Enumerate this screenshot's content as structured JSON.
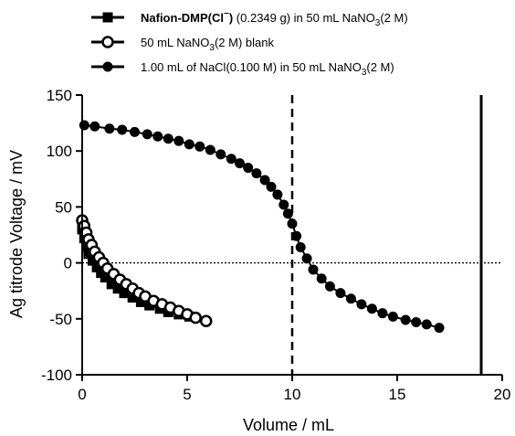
{
  "chart_data": {
    "type": "scatter",
    "xlabel": "Volume / mL",
    "ylabel": "Ag titrode Voltage / mV",
    "xlim": [
      0,
      20
    ],
    "ylim": [
      -100,
      150
    ],
    "xticks": [
      "0",
      "5",
      "10",
      "15",
      "20"
    ],
    "yticks": [
      "-100",
      "-50",
      "0",
      "50",
      "100",
      "150"
    ],
    "grid": false,
    "legend_position": "top",
    "legend": [
      {
        "parts": [
          {
            "text": "Nafion-DMP(Cl",
            "bold": true
          },
          {
            "text": "−",
            "bold": true,
            "sup": true
          },
          {
            "text": ")",
            "bold": true
          },
          {
            "text": " (0.2349 g) in 50 mL NaNO"
          },
          {
            "text": "3",
            "sub": true
          },
          {
            "text": "(2 M)"
          }
        ]
      },
      {
        "parts": [
          {
            "text": "50 mL NaNO"
          },
          {
            "text": "3",
            "sub": true
          },
          {
            "text": "(2 M) blank"
          }
        ]
      },
      {
        "parts": [
          {
            "text": "1.00 mL of NaCl(0.100 M) in 50 mL NaNO"
          },
          {
            "text": "3",
            "sub": true
          },
          {
            "text": "(2 M)"
          }
        ]
      }
    ],
    "reference_lines": [
      {
        "orientation": "horizontal",
        "value": 0,
        "style": "dotted"
      },
      {
        "orientation": "vertical",
        "value": 10,
        "style": "dashed"
      },
      {
        "orientation": "vertical",
        "value": 19,
        "style": "solid"
      }
    ],
    "series": [
      {
        "marker": "square",
        "x": [
          0,
          0.1,
          0.2,
          0.3,
          0.5,
          0.7,
          0.9,
          1.1,
          1.4,
          1.7,
          2.0,
          2.4,
          2.8,
          3.2,
          3.7,
          4.1,
          4.6,
          5.1
        ],
        "y": [
          30,
          22,
          14,
          8,
          2,
          -4,
          -9,
          -13,
          -19,
          -23,
          -27,
          -31,
          -35,
          -38,
          -41,
          -44,
          -46,
          -48
        ]
      },
      {
        "marker": "open-circle",
        "x": [
          0,
          0.1,
          0.2,
          0.3,
          0.45,
          0.6,
          0.8,
          1.0,
          1.2,
          1.5,
          1.8,
          2.1,
          2.4,
          2.7,
          3.0,
          3.4,
          3.8,
          4.2,
          4.6,
          5.0,
          5.4,
          5.9
        ],
        "y": [
          38,
          33,
          27,
          21,
          16,
          10,
          5,
          0,
          -5,
          -10,
          -15,
          -19,
          -23,
          -27,
          -30,
          -34,
          -37,
          -40,
          -43,
          -46,
          -49,
          -52
        ]
      },
      {
        "marker": "filled-circle",
        "x": [
          0.1,
          0.6,
          1.3,
          1.9,
          2.5,
          3.1,
          3.6,
          4.1,
          4.6,
          5.1,
          5.6,
          6.1,
          6.6,
          7.1,
          7.5,
          7.9,
          8.3,
          8.7,
          9.0,
          9.3,
          9.6,
          9.8,
          10.0,
          10.2,
          10.4,
          10.7,
          11.0,
          11.4,
          11.8,
          12.3,
          12.8,
          13.3,
          13.8,
          14.3,
          14.8,
          15.4,
          15.9,
          16.4,
          17.0
        ],
        "y": [
          123,
          122,
          120,
          119,
          117,
          115,
          113,
          111,
          109,
          106,
          104,
          101,
          97,
          93,
          89,
          85,
          80,
          74,
          68,
          61,
          52,
          44,
          35,
          24,
          14,
          4,
          -6,
          -14,
          -21,
          -27,
          -32,
          -37,
          -41,
          -45,
          -48,
          -51,
          -53,
          -55,
          -58
        ]
      }
    ]
  }
}
